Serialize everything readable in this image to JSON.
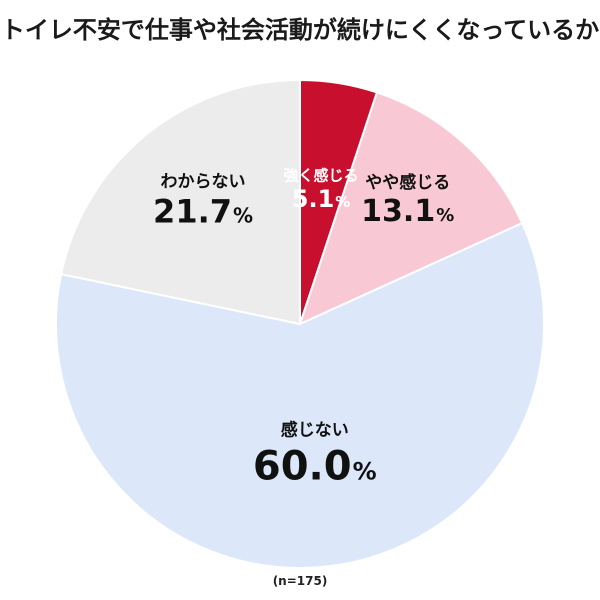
{
  "title": "トイレ不安で仕事や社会活動が続けにくくなっているか",
  "note": "(n=175)",
  "chart_data": {
    "type": "pie",
    "start_angle_deg": 0,
    "direction": "clockwise",
    "legend": "none",
    "slices": [
      {
        "label": "強く感じる",
        "value": 5.1,
        "value_text": "5.1",
        "unit": "%",
        "color": "#c8102e",
        "text_color": "#ffffff"
      },
      {
        "label": "やや感じる",
        "value": 13.1,
        "value_text": "13.1",
        "unit": "%",
        "color": "#f8c9d4",
        "text_color": "#111111"
      },
      {
        "label": "感じない",
        "value": 60.0,
        "value_text": "60.0",
        "unit": "%",
        "color": "#dce8fa",
        "text_color": "#111111"
      },
      {
        "label": "わからない",
        "value": 21.7,
        "value_text": "21.7",
        "unit": "%",
        "color": "#ececec",
        "text_color": "#111111"
      }
    ]
  }
}
